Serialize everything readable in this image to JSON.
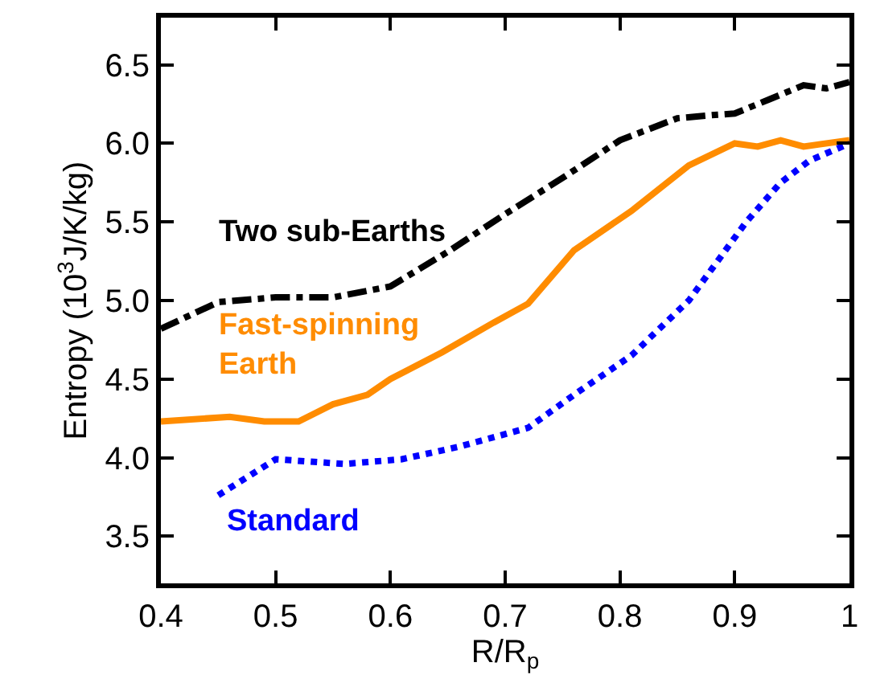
{
  "chart_data": {
    "type": "line",
    "xlabel": "R/R$_{p}$",
    "ylabel": "Entropy (10$^{3}$J/K/kg)",
    "xlim": [
      0.4,
      1.0
    ],
    "xticks": [
      0.4,
      0.5,
      0.6,
      0.7,
      0.8,
      0.9,
      {
        "value": 1.0,
        "label": "1"
      }
    ],
    "ylim": [
      3.2,
      6.8
    ],
    "yticks": [
      3.5,
      {
        "value": 4,
        "label": "4.0"
      },
      4.5,
      {
        "value": 5,
        "label": "5.0"
      },
      5.5,
      {
        "value": 6,
        "label": "6.0"
      },
      6.5
    ],
    "legend": false,
    "marker": "none",
    "series": [
      {
        "name": "Two sub-Earths",
        "color": "#000000",
        "line_style": "dashdot",
        "x": [
          0.4,
          0.45,
          0.5,
          0.55,
          0.6,
          0.65,
          0.7,
          0.75,
          0.8,
          0.85,
          0.88,
          0.9,
          0.93,
          0.96,
          0.98,
          1.0
        ],
        "values": [
          4.82,
          4.99,
          5.02,
          5.02,
          5.09,
          5.31,
          5.55,
          5.78,
          6.02,
          6.16,
          6.18,
          6.19,
          6.28,
          6.37,
          6.35,
          6.39
        ]
      },
      {
        "name": "Fast-spinning Earth",
        "color": "#ff8c00",
        "line_style": "solid",
        "x": [
          0.4,
          0.46,
          0.49,
          0.52,
          0.55,
          0.58,
          0.6,
          0.645,
          0.69,
          0.72,
          0.76,
          0.81,
          0.86,
          0.9,
          0.92,
          0.94,
          0.96,
          1.0
        ],
        "values": [
          4.23,
          4.26,
          4.23,
          4.23,
          4.34,
          4.4,
          4.5,
          4.67,
          4.86,
          4.98,
          5.32,
          5.57,
          5.86,
          6.0,
          5.98,
          6.02,
          5.98,
          6.02
        ]
      },
      {
        "name": "Standard",
        "color": "#0000ff",
        "line_style": "dotted",
        "x": [
          0.45,
          0.5,
          0.56,
          0.61,
          0.66,
          0.72,
          0.76,
          0.81,
          0.86,
          0.88,
          0.91,
          0.94,
          0.965,
          1.0
        ],
        "values": [
          3.76,
          3.99,
          3.96,
          3.99,
          4.07,
          4.19,
          4.4,
          4.65,
          5.0,
          5.2,
          5.5,
          5.75,
          5.89,
          6.0
        ]
      }
    ]
  }
}
